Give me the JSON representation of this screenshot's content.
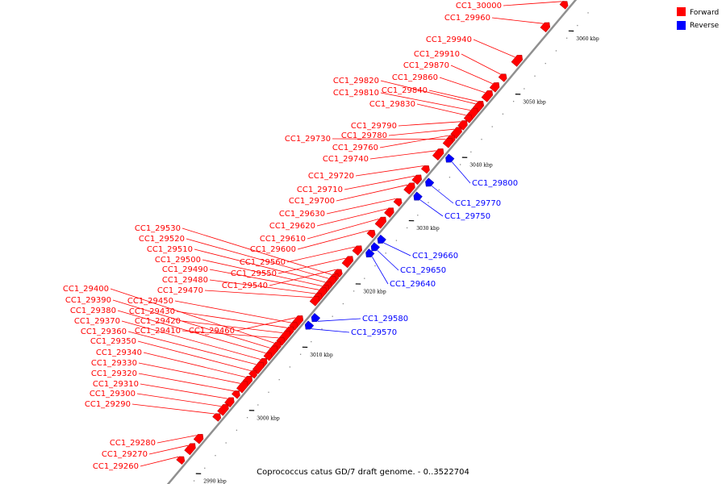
{
  "caption": "Coprococcus catus GD/7 draft genome. - 0..3522704",
  "legend": {
    "position": "top-right",
    "items": [
      {
        "label": "Forward",
        "color": "#ff0000"
      },
      {
        "label": "Reverse",
        "color": "#0000ff"
      }
    ]
  },
  "colors": {
    "forward": "#ff0000",
    "reverse": "#0000ff",
    "backbone": "#909090"
  },
  "ticks": [
    {
      "kbp": 2990,
      "label": "2990 kbp"
    },
    {
      "kbp": 3000,
      "label": "3000 kbp"
    },
    {
      "kbp": 3010,
      "label": "3010 kbp"
    },
    {
      "kbp": 3020,
      "label": "3020 kbp"
    },
    {
      "kbp": 3030,
      "label": "3030 kbp"
    },
    {
      "kbp": 3040,
      "label": "3040 kbp"
    },
    {
      "kbp": 3050,
      "label": "3050 kbp"
    },
    {
      "kbp": 3060,
      "label": "3060 kbp"
    }
  ],
  "forward_genes": [
    {
      "label": "CC1_30000",
      "kbp": 3062.0
    },
    {
      "label": "CC1_29960",
      "kbp": 3058.5
    },
    {
      "label": "CC1_29940",
      "kbp": 3053.2
    },
    {
      "label": "CC1_29910",
      "kbp": 3050.5
    },
    {
      "label": "CC1_29870",
      "kbp": 3049.0
    },
    {
      "label": "CC1_29860",
      "kbp": 3047.6
    },
    {
      "label": "CC1_29840",
      "kbp": 3046.2
    },
    {
      "label": "CC1_29820",
      "kbp": 3045.8
    },
    {
      "label": "CC1_29810",
      "kbp": 3044.8
    },
    {
      "label": "CC1_29830",
      "kbp": 3044.0
    },
    {
      "label": "CC1_29790",
      "kbp": 3043.0
    },
    {
      "label": "CC1_29780",
      "kbp": 3041.8
    },
    {
      "label": "CC1_29760",
      "kbp": 3040.8
    },
    {
      "label": "CC1_29730",
      "kbp": 3040.2
    },
    {
      "label": "CC1_29740",
      "kbp": 3038.4
    },
    {
      "label": "CC1_29720",
      "kbp": 3036.0
    },
    {
      "label": "CC1_29710",
      "kbp": 3034.4
    },
    {
      "label": "CC1_29700",
      "kbp": 3033.0
    },
    {
      "label": "CC1_29630",
      "kbp": 3030.8
    },
    {
      "label": "CC1_29620",
      "kbp": 3029.2
    },
    {
      "label": "CC1_29610",
      "kbp": 3027.6
    },
    {
      "label": "CC1_29600",
      "kbp": 3025.8
    },
    {
      "label": "CC1_29560",
      "kbp": 3023.2
    },
    {
      "label": "CC1_29550",
      "kbp": 3021.4
    },
    {
      "label": "CC1_29540",
      "kbp": 3019.6
    },
    {
      "label": "CC1_29530",
      "kbp": 3018.8
    },
    {
      "label": "CC1_29520",
      "kbp": 3018.2
    },
    {
      "label": "CC1_29510",
      "kbp": 3017.6
    },
    {
      "label": "CC1_29500",
      "kbp": 3017.0
    },
    {
      "label": "CC1_29490",
      "kbp": 3016.4
    },
    {
      "label": "CC1_29480",
      "kbp": 3015.8
    },
    {
      "label": "CC1_29470",
      "kbp": 3015.2
    },
    {
      "label": "CC1_29460",
      "kbp": 3012.0
    },
    {
      "label": "CC1_29450",
      "kbp": 3011.2
    },
    {
      "label": "CC1_29430",
      "kbp": 3010.4
    },
    {
      "label": "CC1_29420",
      "kbp": 3009.6
    },
    {
      "label": "CC1_29410",
      "kbp": 3008.8
    },
    {
      "label": "CC1_29400",
      "kbp": 3008.0
    },
    {
      "label": "CC1_29390",
      "kbp": 3007.2
    },
    {
      "label": "CC1_29380",
      "kbp": 3006.4
    },
    {
      "label": "CC1_29370",
      "kbp": 3005.4
    },
    {
      "label": "CC1_29360",
      "kbp": 3004.6
    },
    {
      "label": "CC1_29350",
      "kbp": 3003.6
    },
    {
      "label": "CC1_29340",
      "kbp": 3002.6
    },
    {
      "label": "CC1_29330",
      "kbp": 3001.6
    },
    {
      "label": "CC1_29320",
      "kbp": 3000.4
    },
    {
      "label": "CC1_29310",
      "kbp": 2999.2
    },
    {
      "label": "CC1_29300",
      "kbp": 2998.0
    },
    {
      "label": "CC1_29290",
      "kbp": 2996.8
    },
    {
      "label": "CC1_29280",
      "kbp": 2993.4
    },
    {
      "label": "CC1_29270",
      "kbp": 2991.8
    },
    {
      "label": "CC1_29260",
      "kbp": 2990.0
    }
  ],
  "reverse_genes": [
    {
      "label": "CC1_29800",
      "kbp": 3038.6
    },
    {
      "label": "CC1_29770",
      "kbp": 3034.8
    },
    {
      "label": "CC1_29750",
      "kbp": 3032.6
    },
    {
      "label": "CC1_29660",
      "kbp": 3025.8
    },
    {
      "label": "CC1_29650",
      "kbp": 3024.6
    },
    {
      "label": "CC1_29640",
      "kbp": 3023.6
    },
    {
      "label": "CC1_29580",
      "kbp": 3013.4
    },
    {
      "label": "CC1_29570",
      "kbp": 3012.2
    }
  ]
}
